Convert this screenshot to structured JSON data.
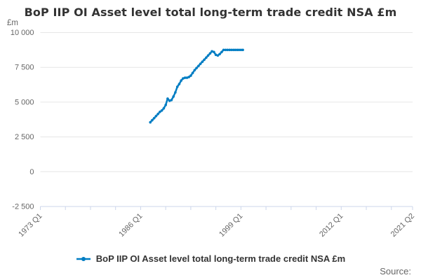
{
  "title": "BoP IIP OI Asset level total long-term trade credit NSA £m",
  "y_axis_unit": "£m",
  "legend": {
    "label": "BoP IIP OI Asset level total long-term trade credit NSA £m"
  },
  "source_label": "Source:",
  "colors": {
    "line": "#007dc3",
    "grid": "#e6e6e6",
    "axis": "#ccd6eb",
    "tick_label": "#666666",
    "title_text": "#333333",
    "legend_text": "#333333",
    "source_text": "#666666",
    "background": "#ffffff"
  },
  "chart_data": {
    "type": "line",
    "title": "BoP IIP OI Asset level total long-term trade credit NSA £m",
    "xlabel": "",
    "ylabel": "£m",
    "ylim": [
      -2500,
      10000
    ],
    "y_ticks": [
      10000,
      7500,
      5000,
      2500,
      0,
      -2500
    ],
    "y_tick_labels": [
      "10 000",
      "7 500",
      "5 000",
      "2 500",
      "0",
      "-2 500"
    ],
    "x_axis_span": [
      "1973 Q1",
      "2021 Q2"
    ],
    "x_tick_labels": [
      "1973 Q1",
      "1986 Q1",
      "1999 Q1",
      "2012 Q1",
      "2021 Q2"
    ],
    "minor_tick_interval_quarters": 13,
    "grid": true,
    "legend_position": "bottom",
    "series": [
      {
        "name": "BoP IIP OI Asset level total long-term trade credit NSA £m",
        "x": [
          "1987 Q2",
          "1987 Q3",
          "1987 Q4",
          "1988 Q1",
          "1988 Q2",
          "1988 Q3",
          "1988 Q4",
          "1989 Q1",
          "1989 Q2",
          "1989 Q3",
          "1989 Q4",
          "1990 Q1",
          "1990 Q2",
          "1990 Q3",
          "1990 Q4",
          "1991 Q1",
          "1991 Q2",
          "1991 Q3",
          "1991 Q4",
          "1992 Q1",
          "1992 Q2",
          "1992 Q3",
          "1992 Q4",
          "1993 Q1",
          "1993 Q2",
          "1993 Q3",
          "1993 Q4",
          "1994 Q1",
          "1994 Q2",
          "1994 Q3",
          "1994 Q4",
          "1995 Q1",
          "1995 Q2",
          "1995 Q3",
          "1995 Q4",
          "1996 Q1",
          "1996 Q2",
          "1996 Q3",
          "1996 Q4",
          "1997 Q1",
          "1997 Q2",
          "1997 Q3",
          "1997 Q4",
          "1998 Q1",
          "1998 Q2",
          "1998 Q3",
          "1998 Q4",
          "1999 Q1",
          "1999 Q2"
        ],
        "values": [
          3550,
          3700,
          3850,
          4000,
          4150,
          4300,
          4400,
          4550,
          4800,
          5250,
          5100,
          5150,
          5400,
          5700,
          6100,
          6300,
          6550,
          6700,
          6750,
          6750,
          6800,
          6900,
          7100,
          7300,
          7450,
          7600,
          7750,
          7900,
          8050,
          8200,
          8350,
          8500,
          8650,
          8600,
          8400,
          8350,
          8450,
          8600,
          8750,
          8750,
          8750,
          8750,
          8750,
          8750,
          8750,
          8750,
          8750,
          8750,
          8750
        ]
      }
    ]
  }
}
